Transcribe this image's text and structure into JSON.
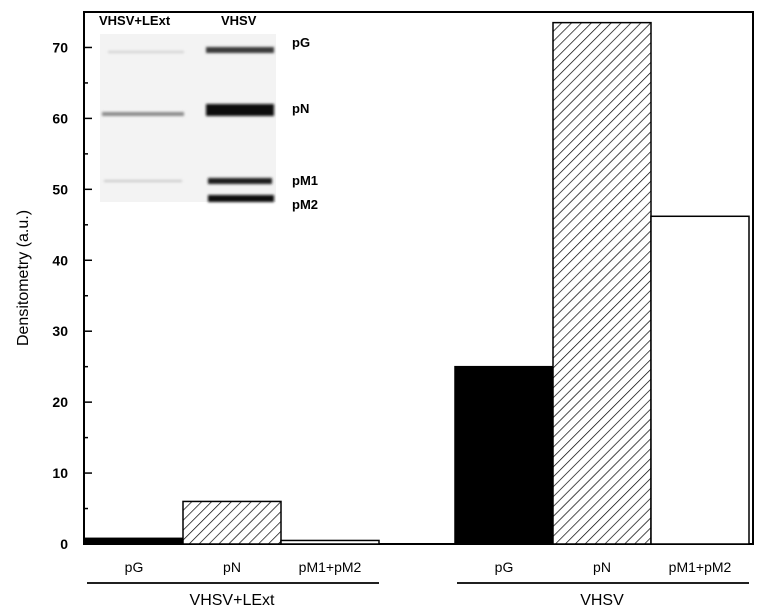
{
  "chart_data": {
    "type": "bar",
    "ylabel": "Densitometry (a.u.)",
    "xlabel": "",
    "ylim": [
      0,
      75
    ],
    "yticks": [
      0,
      10,
      20,
      30,
      40,
      50,
      60,
      70
    ],
    "groups": [
      {
        "name": "VHSV+LExt",
        "bars": [
          {
            "label": "pG",
            "value": 0.8,
            "fill": "solid"
          },
          {
            "label": "pN",
            "value": 6.0,
            "fill": "hatched"
          },
          {
            "label": "pM1+pM2",
            "value": 0.5,
            "fill": "open"
          }
        ]
      },
      {
        "name": "VHSV",
        "bars": [
          {
            "label": "pG",
            "value": 25.0,
            "fill": "solid"
          },
          {
            "label": "pN",
            "value": 73.5,
            "fill": "hatched"
          },
          {
            "label": "pM1+pM2",
            "value": 46.2,
            "fill": "open"
          }
        ]
      }
    ],
    "inset_blot": {
      "lane_headers": [
        "VHSV+LExt",
        "VHSV"
      ],
      "band_labels": [
        "pG",
        "pN",
        "pM1",
        "pM2"
      ]
    },
    "colors": {
      "solid": "#000000",
      "open": "#ffffff",
      "hatch": "#000000"
    }
  }
}
